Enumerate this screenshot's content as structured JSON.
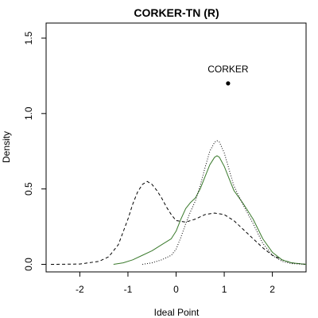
{
  "chart_data": {
    "type": "line",
    "title": "CORKER-TN (R)",
    "xlabel": "Ideal Point",
    "ylabel": "Density",
    "xlim": [
      -2.7,
      2.7
    ],
    "ylim": [
      -0.05,
      1.6
    ],
    "xticks": [
      -2,
      -1,
      0,
      1,
      2
    ],
    "xtick_labels": [
      "-2",
      "-1",
      "0",
      "1",
      "2"
    ],
    "yticks": [
      0.0,
      0.5,
      1.0,
      1.5
    ],
    "ytick_labels": [
      "0.0",
      "0.5",
      "1.0",
      "1.5"
    ],
    "grid": false,
    "series": [
      {
        "style": "dashed",
        "color": "#000000",
        "x": [
          -2.6,
          -2.0,
          -1.6,
          -1.4,
          -1.2,
          -1.0,
          -0.9,
          -0.8,
          -0.7,
          -0.6,
          -0.5,
          -0.4,
          -0.3,
          -0.2,
          -0.1,
          0.0,
          0.2,
          0.4,
          0.6,
          0.8,
          1.0,
          1.2,
          1.4,
          1.6,
          1.8,
          2.0,
          2.2,
          2.4,
          2.7
        ],
        "y": [
          0.0,
          0.002,
          0.02,
          0.05,
          0.13,
          0.3,
          0.4,
          0.48,
          0.53,
          0.55,
          0.53,
          0.49,
          0.44,
          0.38,
          0.33,
          0.29,
          0.28,
          0.3,
          0.33,
          0.34,
          0.33,
          0.29,
          0.23,
          0.17,
          0.11,
          0.06,
          0.03,
          0.01,
          0.0
        ]
      },
      {
        "style": "solid",
        "color": "#3a7a2c",
        "x": [
          -1.3,
          -1.1,
          -0.9,
          -0.7,
          -0.5,
          -0.3,
          -0.1,
          0.0,
          0.1,
          0.2,
          0.3,
          0.4,
          0.5,
          0.6,
          0.7,
          0.8,
          0.85,
          0.9,
          1.0,
          1.1,
          1.2,
          1.4,
          1.6,
          1.8,
          2.0,
          2.2,
          2.4,
          2.7
        ],
        "y": [
          0.0,
          0.01,
          0.03,
          0.06,
          0.09,
          0.13,
          0.17,
          0.22,
          0.3,
          0.37,
          0.41,
          0.44,
          0.5,
          0.58,
          0.66,
          0.71,
          0.72,
          0.71,
          0.65,
          0.57,
          0.49,
          0.4,
          0.3,
          0.17,
          0.08,
          0.03,
          0.01,
          0.0
        ]
      },
      {
        "style": "dotted",
        "color": "#000000",
        "x": [
          -0.7,
          -0.5,
          -0.3,
          -0.1,
          0.0,
          0.1,
          0.2,
          0.3,
          0.4,
          0.5,
          0.6,
          0.7,
          0.8,
          0.85,
          0.9,
          1.0,
          1.1,
          1.2,
          1.4,
          1.6,
          1.8,
          2.0,
          2.2,
          2.4,
          2.7
        ],
        "y": [
          0.0,
          0.01,
          0.03,
          0.06,
          0.1,
          0.18,
          0.27,
          0.35,
          0.42,
          0.52,
          0.64,
          0.75,
          0.81,
          0.82,
          0.81,
          0.74,
          0.63,
          0.52,
          0.39,
          0.27,
          0.14,
          0.06,
          0.02,
          0.005,
          0.0
        ]
      }
    ],
    "points": [
      {
        "label": "CORKER",
        "x": 1.08,
        "y": 1.2
      }
    ]
  }
}
